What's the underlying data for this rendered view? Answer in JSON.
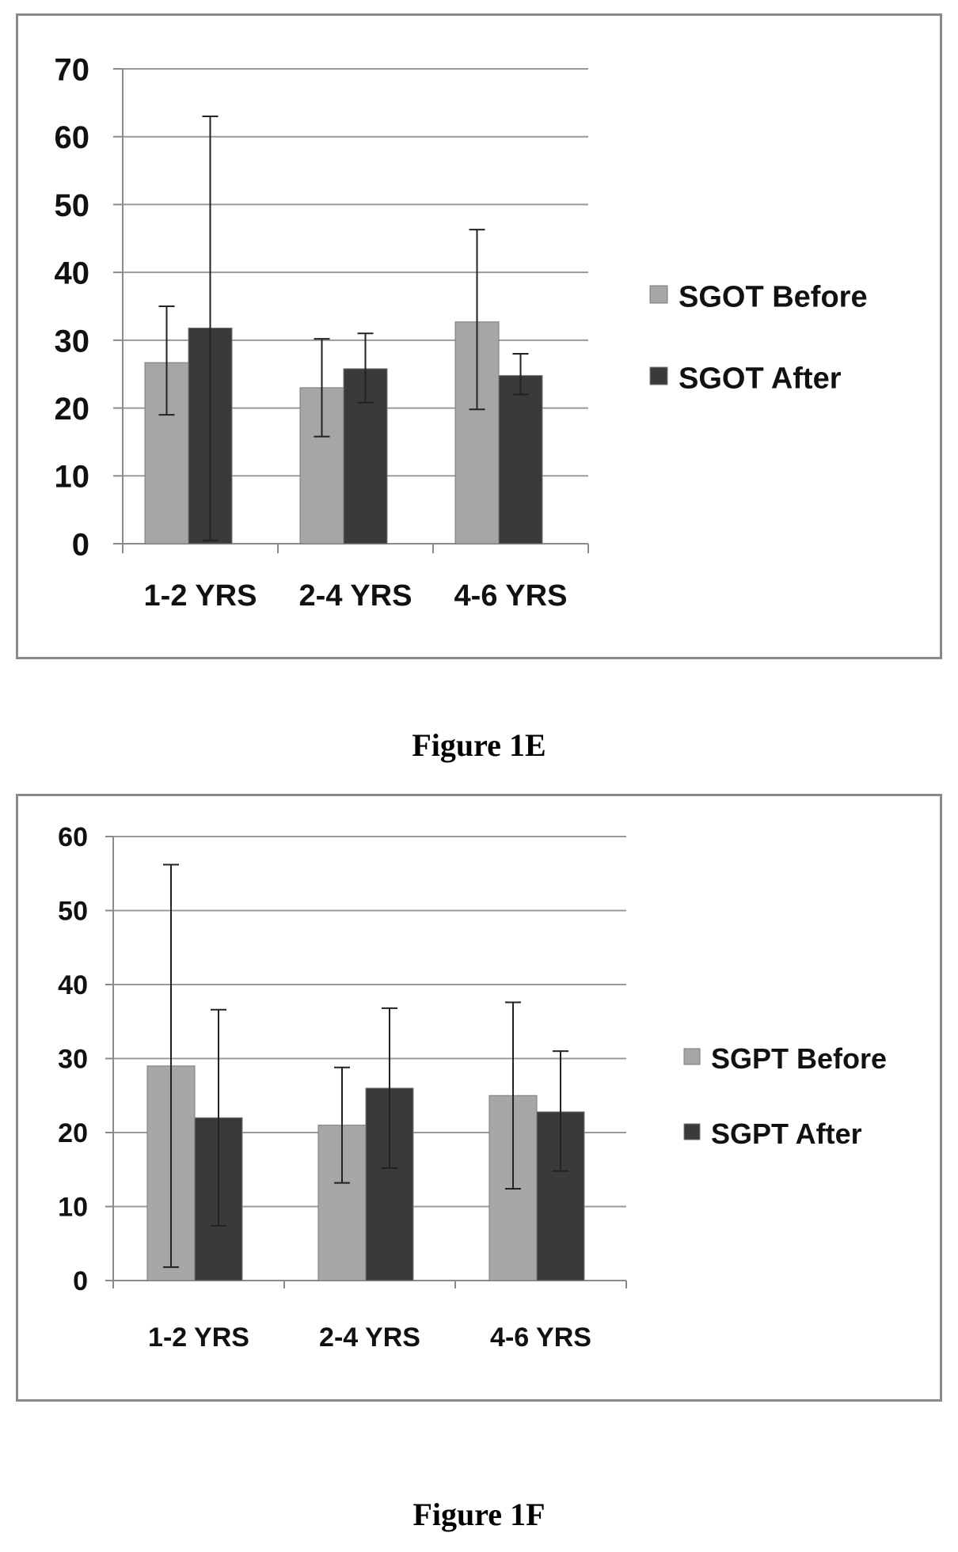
{
  "colors": {
    "before": "#a6a6a6",
    "after": "#3a3a3a",
    "grid": "#9a9a9a",
    "axis": "#8a8a8a",
    "error": "#222222"
  },
  "figures": [
    {
      "caption": "Figure 1E"
    },
    {
      "caption": "Figure 1F"
    }
  ],
  "chart_data": [
    {
      "type": "bar",
      "title": "",
      "xlabel": "",
      "ylabel": "",
      "categories": [
        "1-2 YRS",
        "2-4 YRS",
        "4-6 YRS"
      ],
      "ylim": [
        0,
        70
      ],
      "yticks": [
        "0",
        "10",
        "20",
        "30",
        "40",
        "50",
        "60",
        "70"
      ],
      "grid": true,
      "legend_position": "right",
      "series": [
        {
          "name": "SGOT Before",
          "values": [
            26.7,
            23.0,
            32.7
          ],
          "err_low": [
            19.0,
            15.8,
            19.8
          ],
          "err_high": [
            35.0,
            30.2,
            46.3
          ]
        },
        {
          "name": "SGOT After",
          "values": [
            31.8,
            25.8,
            24.8
          ],
          "err_low": [
            0.5,
            20.8,
            22.0
          ],
          "err_high": [
            63.0,
            31.0,
            28.0
          ]
        }
      ]
    },
    {
      "type": "bar",
      "title": "",
      "xlabel": "",
      "ylabel": "",
      "categories": [
        "1-2 YRS",
        "2-4 YRS",
        "4-6 YRS"
      ],
      "ylim": [
        0,
        60
      ],
      "yticks": [
        "0",
        "10",
        "20",
        "30",
        "40",
        "50",
        "60"
      ],
      "grid": true,
      "legend_position": "right",
      "series": [
        {
          "name": "SGPT Before",
          "values": [
            29.0,
            21.0,
            25.0
          ],
          "err_low": [
            1.8,
            13.2,
            12.4
          ],
          "err_high": [
            56.2,
            28.8,
            37.6
          ]
        },
        {
          "name": "SGPT After",
          "values": [
            22.0,
            26.0,
            22.8
          ],
          "err_low": [
            7.4,
            15.2,
            14.8
          ],
          "err_high": [
            36.6,
            36.8,
            31.0
          ]
        }
      ]
    }
  ]
}
